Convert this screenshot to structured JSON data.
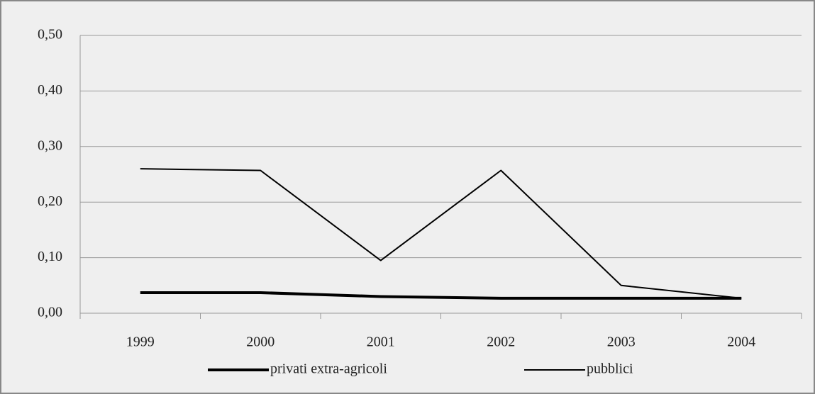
{
  "chart_data": {
    "type": "line",
    "categories": [
      "1999",
      "2000",
      "2001",
      "2002",
      "2003",
      "2004"
    ],
    "series": [
      {
        "name": "privati extra-agricoli",
        "color": "#000000",
        "values": [
          0.037,
          0.037,
          0.03,
          0.027,
          0.027,
          0.027
        ]
      },
      {
        "name": "pubblici",
        "color": "#000000",
        "values": [
          0.26,
          0.257,
          0.095,
          0.257,
          0.05,
          0.027
        ]
      }
    ],
    "ylim": [
      0,
      0.5
    ],
    "yticks": [
      {
        "value": 0,
        "label": "0,00"
      },
      {
        "value": 0.1,
        "label": "0,10"
      },
      {
        "value": 0.2,
        "label": "0,20"
      },
      {
        "value": 0.3,
        "label": "0,30"
      },
      {
        "value": 0.4,
        "label": "0,40"
      },
      {
        "value": 0.5,
        "label": "0,50"
      }
    ],
    "grid": true,
    "legend": "bottom"
  }
}
